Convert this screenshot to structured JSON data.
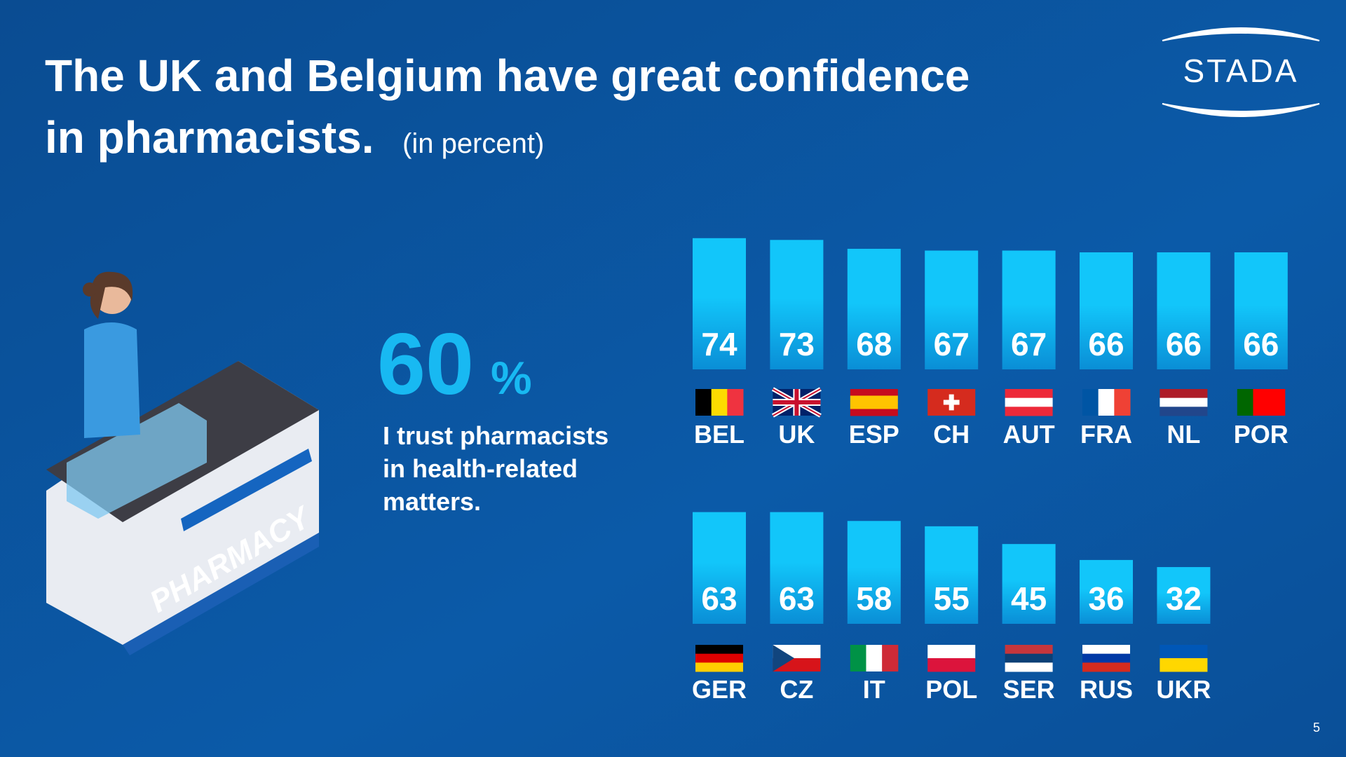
{
  "title_line1": "The UK and Belgium have great confidence",
  "title_line2": "in pharmacists.",
  "subtitle": "(in percent)",
  "logo": "STADA",
  "stat": {
    "value": 60,
    "unit": "%",
    "caption": [
      "I trust pharmacists",
      "in health-related",
      "matters."
    ]
  },
  "illustration_label": "PHARMACY",
  "page_number": 5,
  "chart_data": [
    {
      "type": "bar",
      "categories": [
        "BEL",
        "UK",
        "ESP",
        "CH",
        "AUT",
        "FRA",
        "NL",
        "POR"
      ],
      "values": [
        74,
        73,
        68,
        67,
        67,
        66,
        66,
        66
      ],
      "color": "#12c6fa"
    },
    {
      "type": "bar",
      "categories": [
        "GER",
        "CZ",
        "IT",
        "POL",
        "SER",
        "RUS",
        "UKR"
      ],
      "values": [
        63,
        63,
        58,
        55,
        45,
        36,
        32
      ],
      "color": "#12c6fa"
    }
  ]
}
